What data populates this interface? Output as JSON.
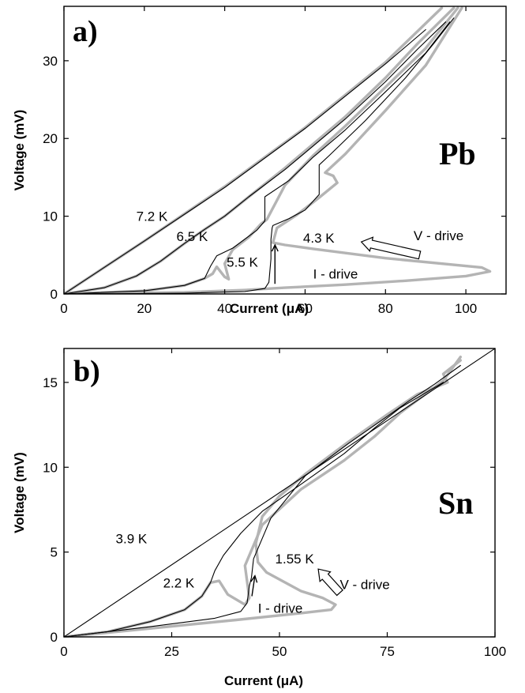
{
  "chart_data": [
    {
      "type": "line",
      "panel_label": "a)",
      "material": "Pb",
      "xlabel": "Current (μA)",
      "ylabel": "Voltage (mV)",
      "xlim": [
        0,
        110
      ],
      "ylim": [
        0,
        37
      ],
      "xticks": [
        0,
        20,
        40,
        60,
        80,
        100
      ],
      "yticks": [
        0,
        10,
        20,
        30
      ],
      "grid": false,
      "colors": {
        "i_drive": "#000000",
        "v_drive": "#b4b4b4",
        "axis": "#000000"
      },
      "annotations": [
        {
          "text": "7.2 K",
          "x": 18,
          "y": 10
        },
        {
          "text": "6.5 K",
          "x": 28,
          "y": 7.4
        },
        {
          "text": "5.5 K",
          "x": 40.5,
          "y": 4.1
        },
        {
          "text": "4.3 K",
          "x": 59.5,
          "y": 7.2
        },
        {
          "text": "V - drive",
          "x": 87,
          "y": 7.5
        },
        {
          "text": "I - drive",
          "x": 62,
          "y": 2.6
        }
      ],
      "arrows": [
        {
          "kind": "line",
          "from": [
            52.5,
            1.3
          ],
          "to": [
            52.5,
            6.3
          ]
        },
        {
          "kind": "hollow",
          "from": [
            88.5,
            5.0
          ],
          "to": [
            74,
            6.7
          ]
        }
      ],
      "series": [
        {
          "curve": "7.2 K",
          "drive": "I",
          "x": [
            0,
            20,
            40,
            60,
            80,
            90
          ],
          "y": [
            0,
            6.8,
            13.7,
            21.3,
            29.6,
            34
          ]
        },
        {
          "curve": "7.2 K",
          "drive": "V",
          "x": [
            0,
            20,
            40,
            60,
            80,
            94
          ],
          "y": [
            0,
            6.8,
            13.8,
            21.4,
            29.8,
            36.8
          ]
        },
        {
          "curve": "6.5 K",
          "drive": "I",
          "x": [
            0,
            10,
            18,
            24,
            30,
            35,
            40,
            46,
            55,
            70,
            80,
            88,
            95
          ],
          "y": [
            0,
            0.8,
            2.3,
            4.2,
            6.5,
            8.3,
            10,
            12.5,
            16,
            22.5,
            27.3,
            31.5,
            35
          ]
        },
        {
          "curve": "6.5 K",
          "drive": "V",
          "x": [
            0,
            10,
            18,
            24,
            30,
            35,
            40,
            46,
            55,
            70,
            80,
            88,
            97
          ],
          "y": [
            0,
            0.8,
            2.3,
            4.2,
            6.5,
            8.3,
            10,
            12.5,
            16.2,
            22.8,
            27.8,
            32.2,
            36.8
          ]
        },
        {
          "curve": "5.5 K",
          "drive": "I",
          "x": [
            0,
            20,
            30,
            35,
            36.5,
            38,
            42,
            48,
            49.5,
            50,
            50,
            56,
            62,
            70,
            80,
            90,
            96
          ],
          "y": [
            0,
            0.4,
            1.1,
            2.0,
            3.6,
            4.9,
            5.9,
            8.2,
            9.1,
            9.4,
            12.5,
            14.6,
            17.6,
            21.1,
            26.0,
            31.0,
            35.0
          ]
        },
        {
          "curve": "5.5 K",
          "drive": "V",
          "x": [
            0,
            20,
            30,
            35,
            37,
            38,
            40,
            41,
            40,
            42,
            46,
            49,
            50.5,
            55,
            62,
            70,
            80,
            90,
            98
          ],
          "y": [
            0,
            0.4,
            1.1,
            2.0,
            2.6,
            3.5,
            2.2,
            1.9,
            3.9,
            5.7,
            7.3,
            9.0,
            9.6,
            14.0,
            17.8,
            21.6,
            26.6,
            31.6,
            36.8
          ]
        },
        {
          "curve": "4.3 K",
          "drive": "I",
          "x": [
            0,
            30,
            45,
            50,
            51,
            51.5,
            51.5,
            51.8,
            52,
            56,
            60,
            63.5,
            63.5,
            66,
            75,
            85,
            92,
            97
          ],
          "y": [
            0,
            0.1,
            0.3,
            0.7,
            1.5,
            4.5,
            7.0,
            8.5,
            8.8,
            9.7,
            10.8,
            12.8,
            16.6,
            17.8,
            22.3,
            27.8,
            32.2,
            35.5
          ]
        },
        {
          "curve": "4.3 K",
          "drive": "V",
          "x": [
            0,
            30,
            45,
            55,
            70,
            85,
            100,
            106,
            104,
            80,
            62,
            55,
            52,
            53,
            58,
            63.5,
            68,
            67,
            65,
            70,
            80,
            90,
            99
          ],
          "y": [
            0,
            0.2,
            0.5,
            0.8,
            1.2,
            1.7,
            2.3,
            2.9,
            3.4,
            4.6,
            5.8,
            6.3,
            6.6,
            8.5,
            10.2,
            12.4,
            14.3,
            15.2,
            15.6,
            18.0,
            23.6,
            29.4,
            36.8
          ]
        }
      ]
    },
    {
      "type": "line",
      "panel_label": "b)",
      "material": "Sn",
      "xlabel": "Current (μA)",
      "ylabel": "Voltage (mV)",
      "xlim": [
        0,
        100
      ],
      "ylim": [
        0,
        17
      ],
      "xticks": [
        0,
        25,
        50,
        75,
        100
      ],
      "yticks": [
        0,
        5,
        10,
        15
      ],
      "grid": false,
      "colors": {
        "i_drive": "#000000",
        "v_drive": "#b4b4b4",
        "axis": "#000000"
      },
      "annotations": [
        {
          "text": "3.9 K",
          "x": 12,
          "y": 5.8
        },
        {
          "text": "2.2 K",
          "x": 23,
          "y": 3.2
        },
        {
          "text": "1.55 K",
          "x": 49,
          "y": 4.6
        },
        {
          "text": "V - drive",
          "x": 64,
          "y": 3.1
        },
        {
          "text": "I - drive",
          "x": 45,
          "y": 1.7
        }
      ],
      "arrows": [
        {
          "kind": "line",
          "from": [
            43.6,
            2.4
          ],
          "to": [
            44.3,
            3.6
          ]
        },
        {
          "kind": "hollow",
          "from": [
            64,
            2.6
          ],
          "to": [
            59,
            4.0
          ]
        }
      ],
      "series": [
        {
          "curve": "3.9 K",
          "drive": "I",
          "x": [
            0,
            50,
            100
          ],
          "y": [
            0,
            8.5,
            17
          ]
        },
        {
          "curve": "2.2 K",
          "drive": "I",
          "x": [
            0,
            10,
            20,
            28,
            32,
            34,
            35,
            37,
            41,
            46,
            55,
            65,
            72,
            78,
            88
          ],
          "y": [
            0,
            0.3,
            0.9,
            1.6,
            2.4,
            3.2,
            3.9,
            4.8,
            6.1,
            7.4,
            9.0,
            10.8,
            12.3,
            13.5,
            15.0
          ]
        },
        {
          "curve": "2.2 K",
          "drive": "V",
          "x": [
            0,
            10,
            20,
            28,
            32,
            34,
            36,
            38,
            42,
            43,
            42,
            46,
            55,
            65,
            72,
            78,
            88,
            92
          ],
          "y": [
            0,
            0.3,
            0.9,
            1.6,
            2.4,
            3.2,
            3.3,
            2.5,
            1.9,
            2.3,
            4.2,
            6.6,
            8.7,
            10.4,
            11.8,
            13.2,
            15.1,
            16.5
          ]
        },
        {
          "curve": "1.55 K",
          "drive": "I",
          "x": [
            0,
            20,
            35,
            41,
            42.5,
            43,
            43.5,
            44,
            48,
            56,
            66,
            75,
            80,
            86,
            92
          ],
          "y": [
            0,
            0.6,
            1.1,
            1.5,
            2.0,
            3.0,
            3.5,
            4.6,
            7.0,
            9.5,
            11.4,
            13.0,
            13.9,
            14.9,
            16.0
          ]
        },
        {
          "curve": "1.55 K",
          "drive": "V",
          "x": [
            0,
            20,
            40,
            55,
            62,
            63,
            60,
            55,
            47,
            45,
            44.5,
            46,
            50,
            56,
            66,
            75,
            82,
            89,
            88,
            92
          ],
          "y": [
            0,
            0.5,
            1.0,
            1.4,
            1.6,
            1.9,
            2.3,
            2.7,
            3.8,
            4.4,
            5.5,
            7.1,
            8.3,
            9.6,
            11.5,
            13.1,
            14.3,
            15.0,
            15.5,
            16.3
          ]
        }
      ]
    }
  ]
}
